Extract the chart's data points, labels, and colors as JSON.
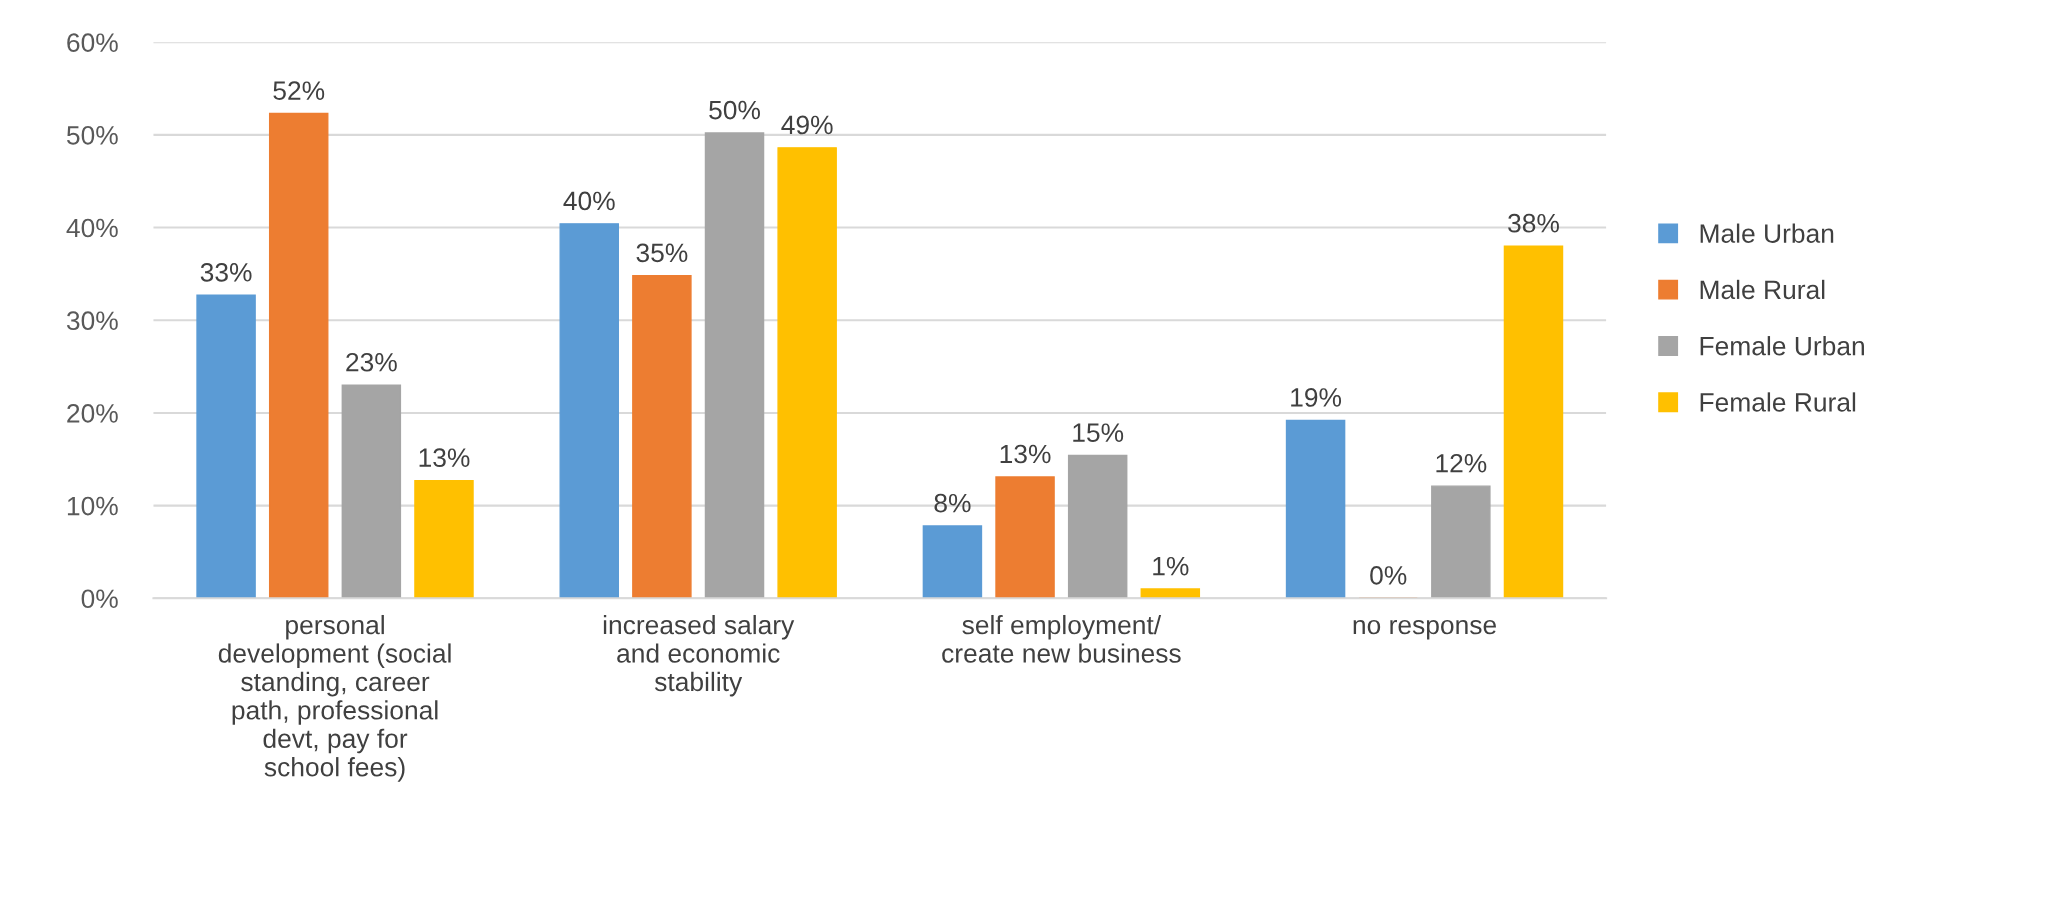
{
  "chart_data": {
    "type": "bar",
    "categories": [
      "personal development (social standing, career path, professional devt, pay for school fees)",
      "increased salary and economic stability",
      "self employment/ create new business",
      "no response"
    ],
    "series": [
      {
        "name": "Male Urban",
        "color": "#5b9bd5",
        "values": [
          32.7,
          40.4,
          7.8,
          19.2
        ],
        "value_labels": [
          "33%",
          "40%",
          "8%",
          "19%"
        ]
      },
      {
        "name": "Male Rural",
        "color": "#ed7d31",
        "values": [
          52.3,
          34.8,
          13.1,
          0
        ],
        "value_labels": [
          "52%",
          "35%",
          "13%",
          "0%"
        ]
      },
      {
        "name": "Female Urban",
        "color": "#a5a5a5",
        "values": [
          23.0,
          50.2,
          15.4,
          12.1
        ],
        "value_labels": [
          "23%",
          "50%",
          "15%",
          "12%"
        ]
      },
      {
        "name": "Female Rural",
        "color": "#ffc000",
        "values": [
          12.7,
          48.6,
          1.0,
          38.0
        ],
        "value_labels": [
          "13%",
          "49%",
          "1%",
          "38%"
        ]
      }
    ],
    "ylim": [
      0,
      60
    ],
    "yticks": [
      {
        "value": 0,
        "label": "0%"
      },
      {
        "value": 10,
        "label": "10%"
      },
      {
        "value": 20,
        "label": "20%"
      },
      {
        "value": 30,
        "label": "30%"
      },
      {
        "value": 40,
        "label": "40%"
      },
      {
        "value": 50,
        "label": "50%"
      },
      {
        "value": 60,
        "label": "60%"
      }
    ],
    "grid": "y",
    "legend": "right"
  }
}
